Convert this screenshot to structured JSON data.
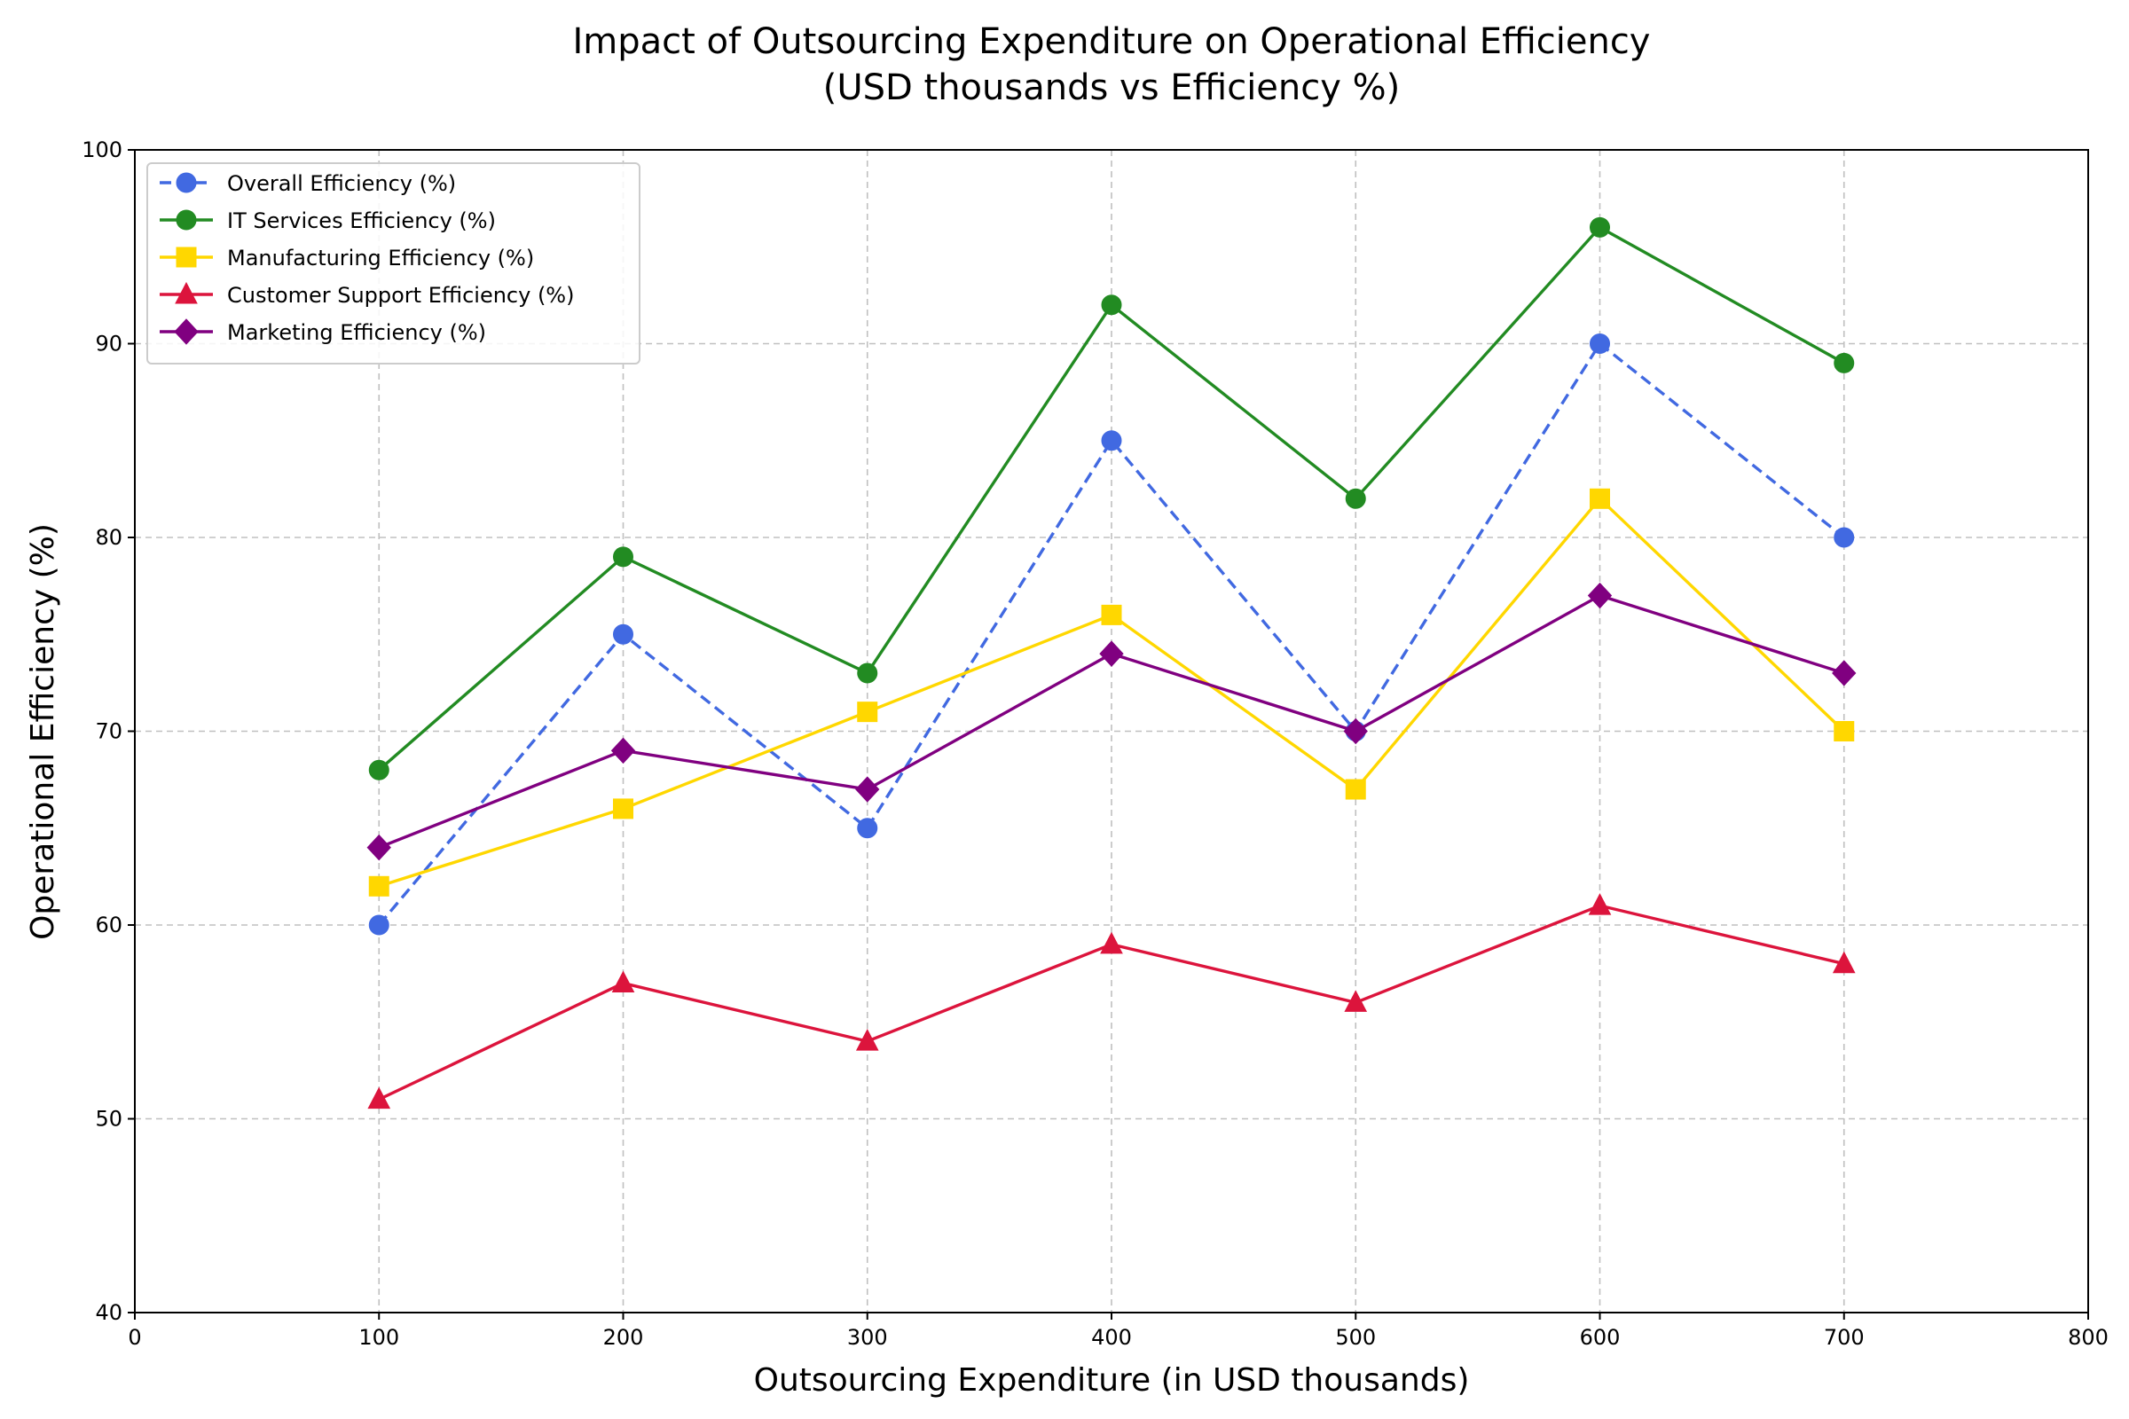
{
  "chart_data": {
    "type": "line",
    "title_line1": "Impact of Outsourcing Expenditure on Operational Efficiency",
    "title_line2": "(USD thousands vs Efficiency %)",
    "xlabel": "Outsourcing Expenditure (in USD thousands)",
    "ylabel": "Operational Efficiency (%)",
    "xlim": [
      0,
      800
    ],
    "ylim": [
      40,
      100
    ],
    "xticks": [
      0,
      100,
      200,
      300,
      400,
      500,
      600,
      700,
      800
    ],
    "yticks": [
      40,
      50,
      60,
      70,
      80,
      90,
      100
    ],
    "grid": true,
    "legend_position": "top-left",
    "x": [
      100,
      200,
      300,
      400,
      500,
      600,
      700
    ],
    "series": [
      {
        "name": "Overall Efficiency (%)",
        "values": [
          60,
          75,
          65,
          85,
          70,
          90,
          80
        ],
        "color": "#4169E1",
        "marker": "circle",
        "dash": true
      },
      {
        "name": "IT Services Efficiency (%)",
        "values": [
          68,
          79,
          73,
          92,
          82,
          96,
          89
        ],
        "color": "#228B22",
        "marker": "circle",
        "dash": false
      },
      {
        "name": "Manufacturing Efficiency (%)",
        "values": [
          62,
          66,
          71,
          76,
          67,
          82,
          70
        ],
        "color": "#FFD700",
        "marker": "square",
        "dash": false
      },
      {
        "name": "Customer Support Efficiency (%)",
        "values": [
          51,
          57,
          54,
          59,
          56,
          61,
          58
        ],
        "color": "#DC143C",
        "marker": "triangle",
        "dash": false
      },
      {
        "name": "Marketing Efficiency (%)",
        "values": [
          64,
          69,
          67,
          74,
          70,
          77,
          73
        ],
        "color": "#800080",
        "marker": "diamond",
        "dash": false
      }
    ]
  }
}
